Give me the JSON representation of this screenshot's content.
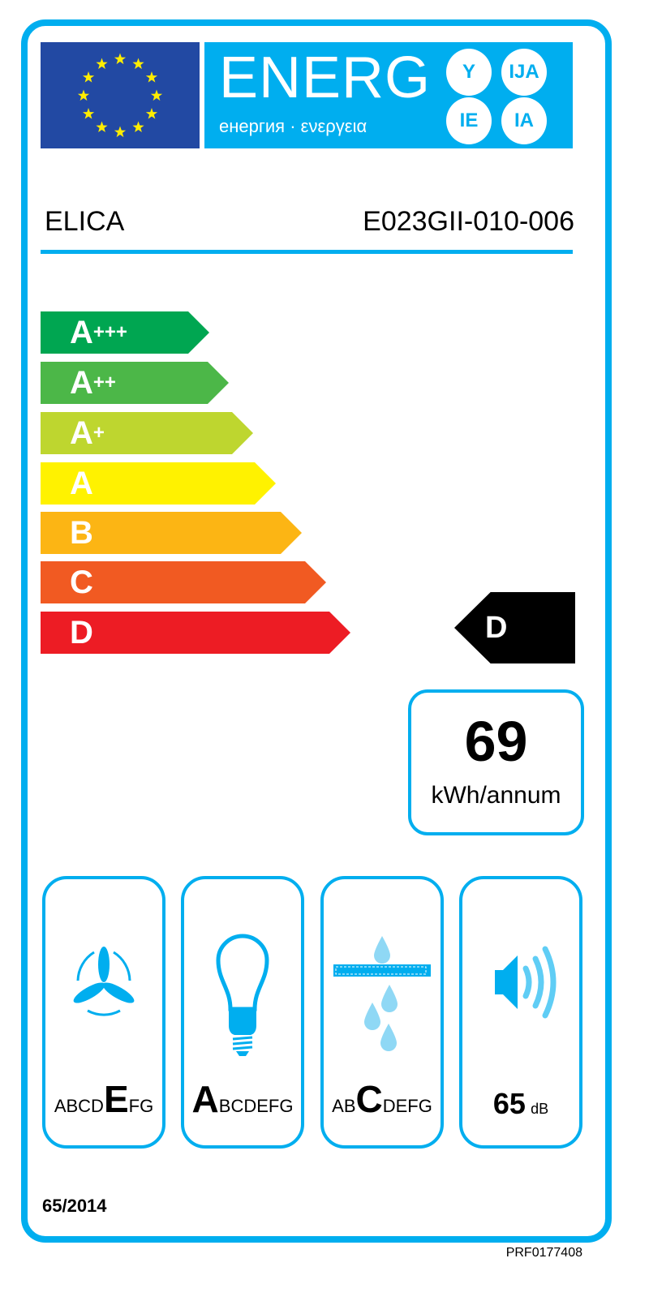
{
  "header": {
    "energ": "ENERG",
    "subtitle": "енергия · ενεργεια",
    "suffixes": [
      "Y",
      "IJA",
      "IE",
      "IA"
    ],
    "flag_icon": "eu-flag-icon"
  },
  "supplier": "ELICA",
  "model": "E023GII-010-006",
  "scale": [
    {
      "letter": "A",
      "plus": "+++",
      "color": "#00a651"
    },
    {
      "letter": "A",
      "plus": "++",
      "color": "#4cb748"
    },
    {
      "letter": "A",
      "plus": "+",
      "color": "#bed62f"
    },
    {
      "letter": "A",
      "plus": "",
      "color": "#fff200"
    },
    {
      "letter": "B",
      "plus": "",
      "color": "#fcb514"
    },
    {
      "letter": "C",
      "plus": "",
      "color": "#f15a22"
    },
    {
      "letter": "D",
      "plus": "",
      "color": "#ed1c24"
    }
  ],
  "energy_class": "D",
  "consumption": {
    "value": "69",
    "unit": "kWh/annum"
  },
  "pictograms": [
    {
      "icon": "fan-icon",
      "pre": "ABCD",
      "sel": "E",
      "post": "FG"
    },
    {
      "icon": "light-bulb-icon",
      "pre": "",
      "sel": "A",
      "post": "BCDEFG"
    },
    {
      "icon": "grease-filter-icon",
      "pre": "AB",
      "sel": "C",
      "post": "DEFG"
    },
    {
      "icon": "speaker-noise-icon",
      "noise": "65",
      "noise_unit": "dB"
    }
  ],
  "regulation": "65/2014",
  "code": "PRF0177408",
  "accent": "#00aeef"
}
